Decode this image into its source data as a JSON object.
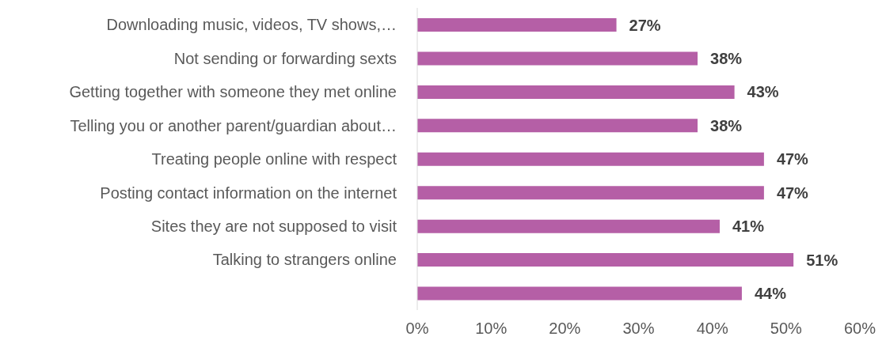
{
  "chart_data": {
    "type": "bar",
    "orientation": "horizontal",
    "categories": [
      "Downloading music, videos, TV shows,…",
      "Not sending or forwarding sexts",
      "Getting together with someone they met online",
      "Telling you or another parent/guardian about…",
      "Treating people online with respect",
      "Posting contact information on the internet",
      "Sites they are not supposed to visit",
      "Talking to strangers online",
      null
    ],
    "values": [
      27,
      38,
      43,
      38,
      47,
      47,
      41,
      51,
      44
    ],
    "color": "#b55fa6",
    "value_labels": [
      "27%",
      "38%",
      "43%",
      "38%",
      "47%",
      "47%",
      "41%",
      "51%",
      "44%"
    ],
    "xlim": [
      0,
      60
    ],
    "xticks": [
      {
        "value": 0,
        "label": "0%"
      },
      {
        "value": 10,
        "label": "10%"
      },
      {
        "value": 20,
        "label": "20%"
      },
      {
        "value": 30,
        "label": "30%"
      },
      {
        "value": 40,
        "label": "40%"
      },
      {
        "value": 50,
        "label": "50%"
      },
      {
        "value": 60,
        "label": "60%"
      }
    ],
    "grid": false
  }
}
